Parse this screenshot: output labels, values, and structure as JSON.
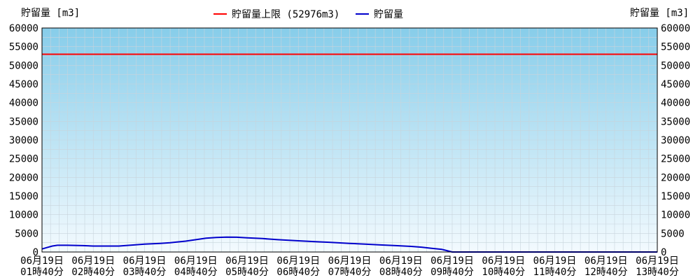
{
  "chart_data": {
    "type": "line",
    "ylabel_left": "貯留量 [m3]",
    "ylabel_right": "貯留量 [m3]",
    "ylim": [
      0,
      60000
    ],
    "yticks": [
      0,
      5000,
      10000,
      15000,
      20000,
      25000,
      30000,
      35000,
      40000,
      45000,
      50000,
      55000,
      60000
    ],
    "x_tick_labels": [
      [
        "06月19日",
        "01時40分"
      ],
      [
        "06月19日",
        "02時40分"
      ],
      [
        "06月19日",
        "03時40分"
      ],
      [
        "06月19日",
        "04時40分"
      ],
      [
        "06月19日",
        "05時40分"
      ],
      [
        "06月19日",
        "06時40分"
      ],
      [
        "06月19日",
        "07時40分"
      ],
      [
        "06月19日",
        "08時40分"
      ],
      [
        "06月19日",
        "09時40分"
      ],
      [
        "06月19日",
        "10時40分"
      ],
      [
        "06月19日",
        "11時40分"
      ],
      [
        "06月19日",
        "12時40分"
      ],
      [
        "06月19日",
        "13時40分"
      ]
    ],
    "x_range_hours": [
      0,
      12
    ],
    "grid": true,
    "legend_position": "top-center",
    "series": [
      {
        "name": "貯留量上限 (52976m3)",
        "color": "#ff0000",
        "x": [
          0,
          12
        ],
        "values": [
          52976,
          52976
        ]
      },
      {
        "name": "貯留量",
        "color": "#0000cc",
        "x": [
          0,
          0.1,
          0.2,
          0.3,
          0.5,
          0.8,
          1.0,
          1.3,
          1.5,
          1.8,
          2.0,
          2.3,
          2.5,
          2.8,
          3.0,
          3.2,
          3.4,
          3.6,
          3.8,
          4.0,
          4.3,
          4.6,
          5.0,
          5.3,
          5.6,
          6.0,
          6.3,
          6.6,
          6.9,
          7.2,
          7.4,
          7.6,
          7.8,
          8.0,
          9,
          10,
          11,
          12
        ],
        "values": [
          800,
          1200,
          1600,
          1800,
          1800,
          1700,
          1600,
          1600,
          1600,
          1900,
          2100,
          2300,
          2500,
          2900,
          3300,
          3700,
          3900,
          4000,
          3950,
          3800,
          3600,
          3300,
          3000,
          2800,
          2600,
          2300,
          2100,
          1900,
          1700,
          1500,
          1300,
          1000,
          700,
          0,
          0,
          0,
          0,
          0
        ]
      }
    ]
  }
}
